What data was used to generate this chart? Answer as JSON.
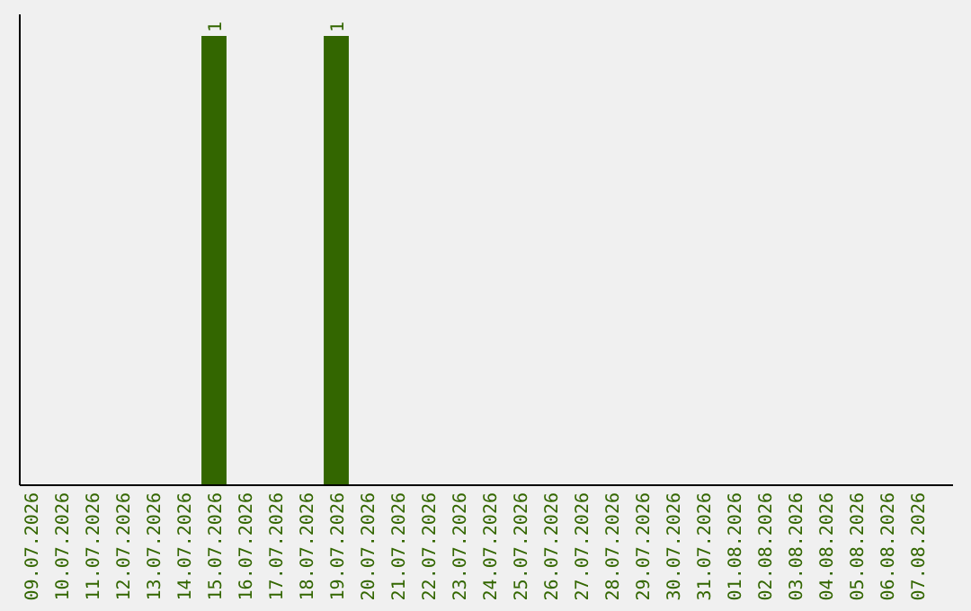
{
  "chart_data": {
    "type": "bar",
    "categories": [
      "09.07.2026",
      "10.07.2026",
      "11.07.2026",
      "12.07.2026",
      "13.07.2026",
      "14.07.2026",
      "15.07.2026",
      "16.07.2026",
      "17.07.2026",
      "18.07.2026",
      "19.07.2026",
      "20.07.2026",
      "21.07.2026",
      "22.07.2026",
      "23.07.2026",
      "24.07.2026",
      "25.07.2026",
      "26.07.2026",
      "27.07.2026",
      "28.07.2026",
      "29.07.2026",
      "30.07.2026",
      "31.07.2026",
      "01.08.2026",
      "02.08.2026",
      "03.08.2026",
      "04.08.2026",
      "05.08.2026",
      "06.08.2026",
      "07.08.2026"
    ],
    "values": [
      0,
      0,
      0,
      0,
      0,
      0,
      1,
      0,
      0,
      0,
      1,
      0,
      0,
      0,
      0,
      0,
      0,
      0,
      0,
      0,
      0,
      0,
      0,
      0,
      0,
      0,
      0,
      0,
      0,
      0
    ],
    "value_labels": [
      null,
      null,
      null,
      null,
      null,
      null,
      "1",
      null,
      null,
      null,
      "1",
      null,
      null,
      null,
      null,
      null,
      null,
      null,
      null,
      null,
      null,
      null,
      null,
      null,
      null,
      null,
      null,
      null,
      null,
      null
    ],
    "color": "#336600"
  }
}
